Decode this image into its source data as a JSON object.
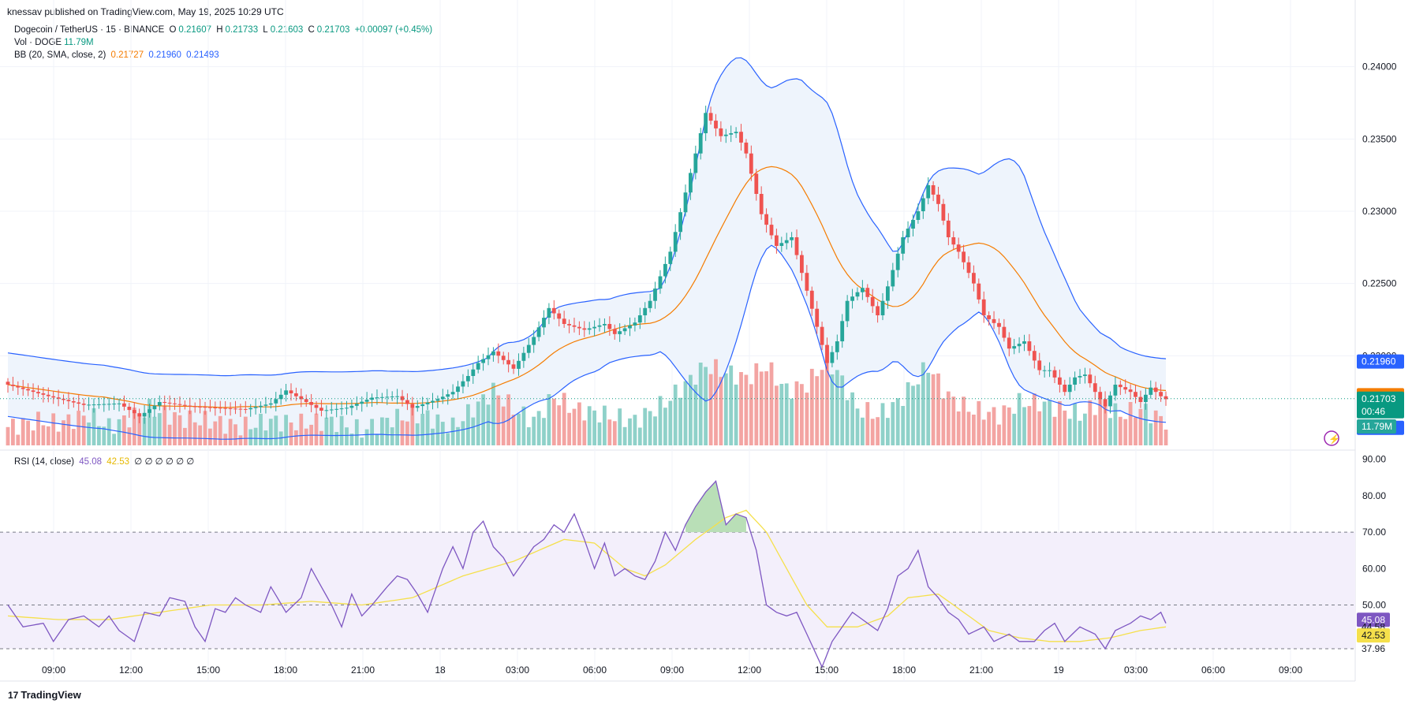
{
  "header": {
    "publisher": "knessav published on TradingView.com, May 19, 2025 10:29 UTC"
  },
  "legend": {
    "symbol": "Dogecoin / TetherUS · 15 · BINANCE",
    "o_label": "O",
    "o": "0.21607",
    "h_label": "H",
    "h": "0.21733",
    "l_label": "L",
    "l": "0.21603",
    "c_label": "C",
    "c": "0.21703",
    "change": "+0.00097 (+0.45%)",
    "vol_label": "Vol · DOGE",
    "vol": "11.79M",
    "bb_label": "BB (20, SMA, close, 2)",
    "bb_basis": "0.21727",
    "bb_upper": "0.21960",
    "bb_lower": "0.21493",
    "rsi_label": "RSI (14, close)",
    "rsi": "45.08",
    "rsi_ma": "42.53",
    "rsi_extra": "∅ ∅ ∅ ∅ ∅ ∅"
  },
  "footer": {
    "brand": "TradingView"
  },
  "colors": {
    "up": "#26a69a",
    "down": "#ef5350",
    "vol_up": "#8fd1c9",
    "vol_down": "#f3a4a2",
    "bb_basis": "#f57c00",
    "bb_band": "#2962ff",
    "bb_fill": "#eef4fc",
    "rsi": "#7e57c2",
    "rsi_ma": "#f5e04b",
    "rsi_fill": "#f3effb"
  },
  "chart_data": [
    {
      "type": "candlestick",
      "title": "Dogecoin / TetherUS · 15 · BINANCE",
      "ylim": [
        0.2138,
        0.2408
      ],
      "y_ticks": [
        "0.24000",
        "0.23500",
        "0.23000",
        "0.22500",
        "0.22000"
      ],
      "x_ticks": [
        "09:00",
        "12:00",
        "15:00",
        "18:00",
        "21:00",
        "18",
        "03:00",
        "06:00",
        "09:00",
        "12:00",
        "15:00",
        "18:00",
        "21:00",
        "19",
        "03:00",
        "06:00",
        "09:00"
      ],
      "price_labels": {
        "bb_upper": "0.21960",
        "bb_basis": "0.21727",
        "last": "0.21703",
        "countdown": "00:46",
        "bb_lower": "0.21493",
        "volume": "11.79M"
      },
      "close_anchors": [
        [
          0,
          0.218
        ],
        [
          8,
          0.2172
        ],
        [
          15,
          0.2166
        ],
        [
          22,
          0.2167
        ],
        [
          26,
          0.2158
        ],
        [
          30,
          0.2168
        ],
        [
          36,
          0.2165
        ],
        [
          41,
          0.2164
        ],
        [
          47,
          0.2163
        ],
        [
          52,
          0.2167
        ],
        [
          55,
          0.2176
        ],
        [
          58,
          0.217
        ],
        [
          62,
          0.2162
        ],
        [
          67,
          0.2164
        ],
        [
          72,
          0.2171
        ],
        [
          77,
          0.2172
        ],
        [
          80,
          0.2164
        ],
        [
          85,
          0.217
        ],
        [
          88,
          0.2175
        ],
        [
          91,
          0.2186
        ],
        [
          93,
          0.2195
        ],
        [
          96,
          0.2203
        ],
        [
          100,
          0.2191
        ],
        [
          104,
          0.2213
        ],
        [
          107,
          0.2233
        ],
        [
          110,
          0.2222
        ],
        [
          114,
          0.2218
        ],
        [
          118,
          0.2222
        ],
        [
          120,
          0.2215
        ],
        [
          124,
          0.2223
        ],
        [
          127,
          0.2238
        ],
        [
          131,
          0.2272
        ],
        [
          134,
          0.2313
        ],
        [
          136,
          0.234
        ],
        [
          138,
          0.2368
        ],
        [
          141,
          0.2352
        ],
        [
          144,
          0.2355
        ],
        [
          146,
          0.234
        ],
        [
          149,
          0.2298
        ],
        [
          152,
          0.2276
        ],
        [
          155,
          0.2282
        ],
        [
          158,
          0.2245
        ],
        [
          162,
          0.2195
        ],
        [
          164,
          0.221
        ],
        [
          166,
          0.2238
        ],
        [
          169,
          0.2247
        ],
        [
          172,
          0.2228
        ],
        [
          174,
          0.2248
        ],
        [
          177,
          0.2282
        ],
        [
          180,
          0.23
        ],
        [
          182,
          0.2318
        ],
        [
          184,
          0.2305
        ],
        [
          186,
          0.2282
        ],
        [
          188,
          0.2272
        ],
        [
          191,
          0.225
        ],
        [
          193,
          0.2228
        ],
        [
          196,
          0.222
        ],
        [
          198,
          0.2205
        ],
        [
          201,
          0.221
        ],
        [
          204,
          0.219
        ],
        [
          206,
          0.219
        ],
        [
          209,
          0.2175
        ],
        [
          211,
          0.2185
        ],
        [
          213,
          0.2187
        ],
        [
          215,
          0.2175
        ],
        [
          217,
          0.2165
        ],
        [
          219,
          0.218
        ],
        [
          222,
          0.2175
        ],
        [
          224,
          0.2168
        ],
        [
          226,
          0.2178
        ],
        [
          228,
          0.2172
        ],
        [
          229,
          0.217
        ]
      ],
      "volume_anchors": [
        [
          0,
          0.15
        ],
        [
          6,
          0.2
        ],
        [
          10,
          0.18
        ],
        [
          16,
          0.25
        ],
        [
          20,
          0.15
        ],
        [
          28,
          0.3
        ],
        [
          34,
          0.22
        ],
        [
          40,
          0.2
        ],
        [
          46,
          0.15
        ],
        [
          52,
          0.2
        ],
        [
          58,
          0.18
        ],
        [
          64,
          0.2
        ],
        [
          70,
          0.12
        ],
        [
          76,
          0.22
        ],
        [
          82,
          0.25
        ],
        [
          88,
          0.15
        ],
        [
          92,
          0.3
        ],
        [
          96,
          0.45
        ],
        [
          100,
          0.3
        ],
        [
          104,
          0.2
        ],
        [
          108,
          0.4
        ],
        [
          112,
          0.3
        ],
        [
          118,
          0.25
        ],
        [
          124,
          0.2
        ],
        [
          130,
          0.35
        ],
        [
          134,
          0.5
        ],
        [
          138,
          0.65
        ],
        [
          142,
          0.6
        ],
        [
          146,
          0.55
        ],
        [
          150,
          0.65
        ],
        [
          154,
          0.45
        ],
        [
          158,
          0.5
        ],
        [
          162,
          0.7
        ],
        [
          164,
          0.6
        ],
        [
          168,
          0.3
        ],
        [
          172,
          0.25
        ],
        [
          176,
          0.35
        ],
        [
          180,
          0.55
        ],
        [
          182,
          0.65
        ],
        [
          186,
          0.4
        ],
        [
          190,
          0.3
        ],
        [
          196,
          0.25
        ],
        [
          200,
          0.35
        ],
        [
          204,
          0.35
        ],
        [
          208,
          0.3
        ],
        [
          212,
          0.25
        ],
        [
          216,
          0.35
        ],
        [
          220,
          0.25
        ],
        [
          224,
          0.3
        ],
        [
          229,
          0.2
        ]
      ]
    },
    {
      "type": "line",
      "title": "RSI (14, close)",
      "ylim": [
        30,
        91
      ],
      "y_ticks": [
        "90.00",
        "80.00",
        "70.00",
        "60.00",
        "50.00"
      ],
      "value_labels": {
        "rsi": "45.08",
        "level_a": "44.58",
        "rsi_ma": "42.53",
        "level_b": "37.96"
      },
      "bands": [
        70,
        50,
        38
      ],
      "rsi_anchors": [
        [
          0,
          50
        ],
        [
          3,
          44
        ],
        [
          7,
          45
        ],
        [
          9,
          40
        ],
        [
          12,
          46
        ],
        [
          15,
          47
        ],
        [
          18,
          44
        ],
        [
          20,
          47
        ],
        [
          22,
          43
        ],
        [
          25,
          40
        ],
        [
          27,
          48
        ],
        [
          30,
          47
        ],
        [
          32,
          52
        ],
        [
          35,
          51
        ],
        [
          37,
          44
        ],
        [
          39,
          40
        ],
        [
          41,
          49
        ],
        [
          43,
          48
        ],
        [
          45,
          52
        ],
        [
          47,
          50
        ],
        [
          50,
          48
        ],
        [
          52,
          55
        ],
        [
          55,
          48
        ],
        [
          58,
          52
        ],
        [
          60,
          60
        ],
        [
          62,
          55
        ],
        [
          64,
          50
        ],
        [
          66,
          44
        ],
        [
          68,
          53
        ],
        [
          70,
          47
        ],
        [
          72,
          50
        ],
        [
          75,
          55
        ],
        [
          77,
          58
        ],
        [
          79,
          57
        ],
        [
          81,
          53
        ],
        [
          83,
          48
        ],
        [
          86,
          60
        ],
        [
          88,
          66
        ],
        [
          90,
          60
        ],
        [
          92,
          70
        ],
        [
          94,
          73
        ],
        [
          96,
          66
        ],
        [
          98,
          63
        ],
        [
          100,
          58
        ],
        [
          102,
          62
        ],
        [
          104,
          66
        ],
        [
          106,
          68
        ],
        [
          108,
          72
        ],
        [
          110,
          70
        ],
        [
          112,
          75
        ],
        [
          114,
          68
        ],
        [
          116,
          60
        ],
        [
          118,
          67
        ],
        [
          120,
          58
        ],
        [
          122,
          60
        ],
        [
          124,
          58
        ],
        [
          126,
          57
        ],
        [
          128,
          62
        ],
        [
          130,
          70
        ],
        [
          132,
          65
        ],
        [
          134,
          72
        ],
        [
          136,
          77
        ],
        [
          138,
          81
        ],
        [
          140,
          84
        ],
        [
          142,
          72
        ],
        [
          144,
          75
        ],
        [
          146,
          74
        ],
        [
          148,
          65
        ],
        [
          150,
          50
        ],
        [
          152,
          48
        ],
        [
          154,
          47
        ],
        [
          156,
          48
        ],
        [
          158,
          42
        ],
        [
          160,
          36
        ],
        [
          161,
          33
        ],
        [
          163,
          40
        ],
        [
          165,
          44
        ],
        [
          167,
          48
        ],
        [
          169,
          46
        ],
        [
          172,
          43
        ],
        [
          174,
          49
        ],
        [
          176,
          58
        ],
        [
          178,
          60
        ],
        [
          180,
          65
        ],
        [
          182,
          55
        ],
        [
          184,
          52
        ],
        [
          186,
          48
        ],
        [
          188,
          46
        ],
        [
          190,
          42
        ],
        [
          193,
          44
        ],
        [
          195,
          40
        ],
        [
          198,
          42
        ],
        [
          200,
          40
        ],
        [
          203,
          40
        ],
        [
          205,
          43
        ],
        [
          207,
          45
        ],
        [
          209,
          40
        ],
        [
          212,
          44
        ],
        [
          215,
          42
        ],
        [
          217,
          38
        ],
        [
          219,
          43
        ],
        [
          222,
          45
        ],
        [
          224,
          47
        ],
        [
          226,
          46
        ],
        [
          228,
          48
        ],
        [
          229,
          45
        ]
      ],
      "rsi_ma_anchors": [
        [
          0,
          47
        ],
        [
          10,
          46
        ],
        [
          20,
          46
        ],
        [
          30,
          48
        ],
        [
          40,
          50
        ],
        [
          50,
          50
        ],
        [
          60,
          51
        ],
        [
          70,
          50
        ],
        [
          80,
          52
        ],
        [
          90,
          58
        ],
        [
          100,
          62
        ],
        [
          110,
          68
        ],
        [
          116,
          67
        ],
        [
          122,
          60
        ],
        [
          126,
          58
        ],
        [
          130,
          61
        ],
        [
          136,
          68
        ],
        [
          142,
          74
        ],
        [
          146,
          76
        ],
        [
          150,
          70
        ],
        [
          154,
          60
        ],
        [
          158,
          50
        ],
        [
          162,
          44
        ],
        [
          168,
          44
        ],
        [
          174,
          47
        ],
        [
          178,
          52
        ],
        [
          184,
          53
        ],
        [
          188,
          49
        ],
        [
          194,
          43
        ],
        [
          200,
          41
        ],
        [
          206,
          40
        ],
        [
          212,
          40
        ],
        [
          218,
          41
        ],
        [
          224,
          43
        ],
        [
          229,
          44
        ]
      ]
    }
  ]
}
